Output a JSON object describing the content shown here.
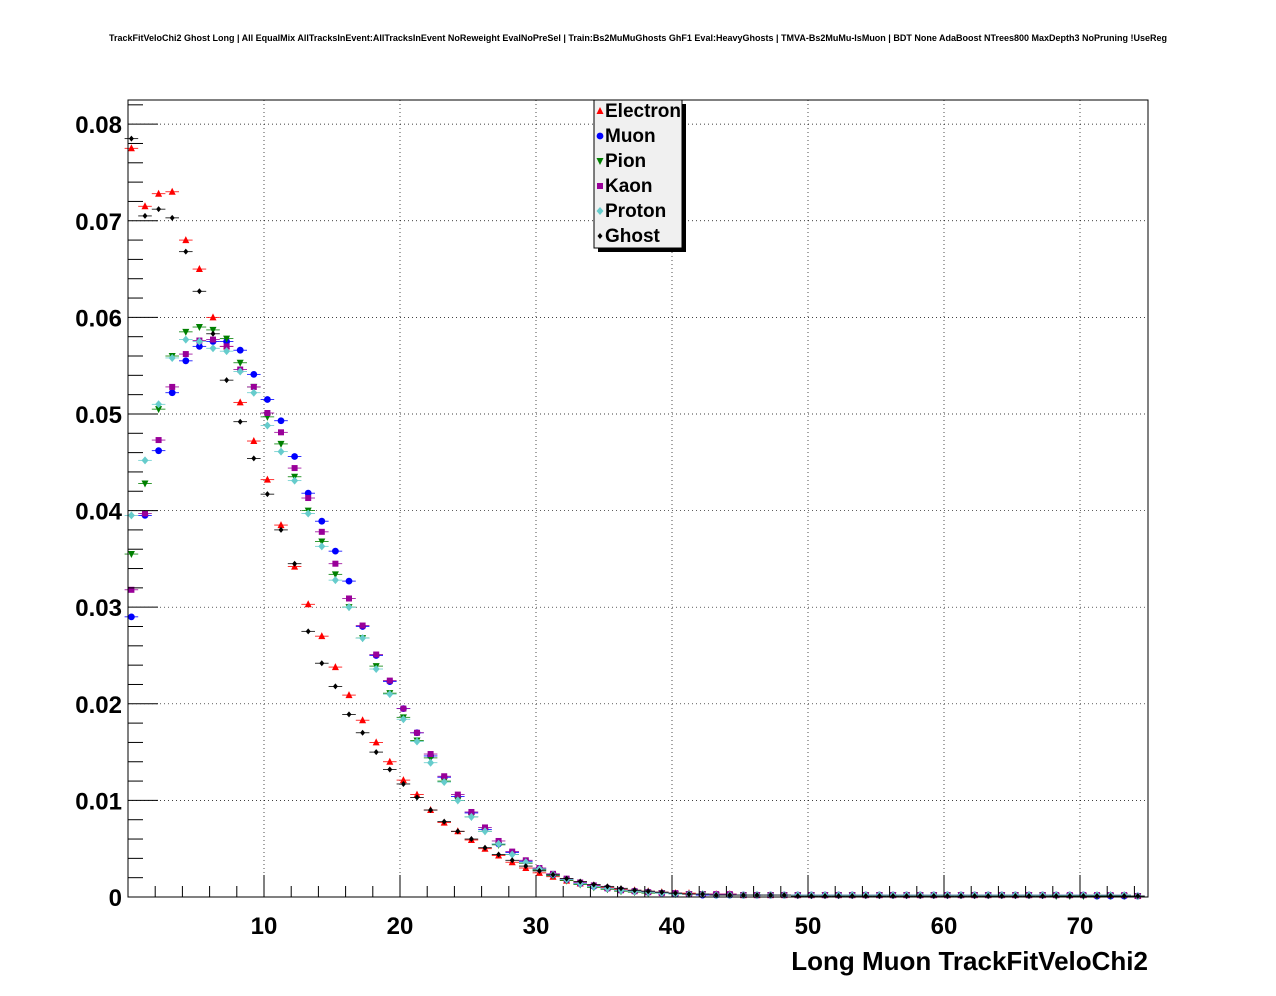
{
  "title": "TrackFitVeloChi2 Ghost Long | All EqualMix AllTracksInEvent:AllTracksInEvent NoReweight EvalNoPreSel | Train:Bs2MuMuGhosts GhF1 Eval:HeavyGhosts | TMVA-Bs2MuMu-IsMuon | BDT None AdaBoost NTrees800 MaxDepth3 NoPruning !UseReg",
  "chart_data": {
    "type": "scatter",
    "title": "TrackFitVeloChi2 Ghost Long | All EqualMix AllTracksInEvent:AllTracksInEvent NoReweight EvalNoPreSel | Train:Bs2MuMuGhosts GhF1 Eval:HeavyGhosts | TMVA-Bs2MuMu-IsMuon | BDT None AdaBoost NTrees800 MaxDepth3 NoPruning !UseReg",
    "xlabel": "Long Muon TrackFitVeloChi2",
    "ylabel": "",
    "xlim": [
      0,
      75
    ],
    "ylim": [
      0,
      0.0825
    ],
    "grid": true,
    "legend_position": "top-center",
    "x_ticks": [
      "10",
      "20",
      "30",
      "40",
      "50",
      "60",
      "70"
    ],
    "y_ticks": [
      "0",
      "0.01",
      "0.02",
      "0.03",
      "0.04",
      "0.05",
      "0.06",
      "0.07",
      "0.08"
    ],
    "x": [
      0.25,
      1.25,
      2.25,
      3.25,
      4.25,
      5.25,
      6.25,
      7.25,
      8.25,
      9.25,
      10.25,
      11.25,
      12.25,
      13.25,
      14.25,
      15.25,
      16.25,
      17.25,
      18.25,
      19.25,
      20.25,
      21.25,
      22.25,
      23.25,
      24.25,
      25.25,
      26.25,
      27.25,
      28.25,
      29.25,
      30.25,
      31.25,
      32.25,
      33.25,
      34.25,
      35.25,
      36.25,
      37.25,
      38.25,
      39.25,
      40.25,
      41.25,
      42.25,
      43.25,
      44.25,
      45.25,
      46.25,
      47.25,
      48.25,
      49.25,
      50.25,
      51.25,
      52.25,
      53.25,
      54.25,
      55.25,
      56.25,
      57.25,
      58.25,
      59.25,
      60.25,
      61.25,
      62.25,
      63.25,
      64.25,
      65.25,
      66.25,
      67.25,
      68.25,
      69.25,
      70.25,
      71.25,
      72.25,
      73.25,
      74.25
    ],
    "series": [
      {
        "name": "Electron",
        "color": "#ff0000",
        "marker": "triangle-up",
        "values": [
          0.0775,
          0.0715,
          0.0728,
          0.073,
          0.068,
          0.065,
          0.06,
          0.057,
          0.0512,
          0.0472,
          0.0432,
          0.0385,
          0.0342,
          0.0303,
          0.027,
          0.0238,
          0.0209,
          0.0183,
          0.016,
          0.014,
          0.0121,
          0.0106,
          0.009,
          0.0077,
          0.0068,
          0.0059,
          0.005,
          0.0043,
          0.0036,
          0.003,
          0.0025,
          0.0021,
          0.0017,
          0.0014,
          0.0012,
          0.001,
          0.0008,
          0.0007,
          0.0006,
          0.0005,
          0.0004,
          0.0004,
          0.0003,
          0.0003,
          0.0003,
          0.0002,
          0.0002,
          0.0002,
          0.0002,
          0.0002,
          0.0002,
          0.0002,
          0.0002,
          0.0002,
          0.0002,
          0.0002,
          0.0002,
          0.0002,
          0.0002,
          0.0002,
          0.0002,
          0.0002,
          0.0002,
          0.0002,
          0.0002,
          0.0002,
          0.0002,
          0.0002,
          0.0002,
          0.0002,
          0.0002,
          0.0002,
          0.0002,
          0.0002,
          0.0001
        ]
      },
      {
        "name": "Muon",
        "color": "#0000ff",
        "marker": "circle",
        "values": [
          0.029,
          0.0395,
          0.0462,
          0.0522,
          0.0555,
          0.057,
          0.0575,
          0.0575,
          0.0566,
          0.0541,
          0.0515,
          0.0493,
          0.0456,
          0.0418,
          0.0389,
          0.0358,
          0.0327,
          0.028,
          0.025,
          0.0223,
          0.0195,
          0.017,
          0.0146,
          0.0124,
          0.0104,
          0.0087,
          0.007,
          0.0055,
          0.0046,
          0.0037,
          0.0029,
          0.0023,
          0.0018,
          0.0014,
          0.0011,
          0.0009,
          0.0007,
          0.0006,
          0.0005,
          0.0004,
          0.0003,
          0.0003,
          0.0002,
          0.0002,
          0.0002,
          0.0002,
          0.0002,
          0.0002,
          0.0002,
          0.0002,
          0.0002,
          0.0002,
          0.0002,
          0.0002,
          0.0002,
          0.0002,
          0.0002,
          0.0002,
          0.0002,
          0.0002,
          0.0002,
          0.0002,
          0.0002,
          0.0002,
          0.0002,
          0.0002,
          0.0002,
          0.0002,
          0.0002,
          0.0002,
          0.0002,
          0.0001,
          0.0001,
          0.0001,
          0.0001
        ]
      },
      {
        "name": "Pion",
        "color": "#008000",
        "marker": "triangle-down",
        "values": [
          0.0355,
          0.0428,
          0.0505,
          0.056,
          0.0585,
          0.059,
          0.0587,
          0.0578,
          0.0553,
          0.0528,
          0.0497,
          0.0469,
          0.0435,
          0.04,
          0.0368,
          0.0334,
          0.03,
          0.0268,
          0.0239,
          0.0211,
          0.0186,
          0.0162,
          0.0144,
          0.012,
          0.01,
          0.0083,
          0.0068,
          0.0054,
          0.0044,
          0.0035,
          0.0028,
          0.0022,
          0.0017,
          0.0013,
          0.001,
          0.0008,
          0.0006,
          0.0005,
          0.0004,
          0.0004,
          0.0003,
          0.0003,
          0.0003,
          0.0002,
          0.0002,
          0.0002,
          0.0002,
          0.0002,
          0.0002,
          0.0002,
          0.0002,
          0.0002,
          0.0002,
          0.0002,
          0.0002,
          0.0002,
          0.0002,
          0.0002,
          0.0002,
          0.0002,
          0.0002,
          0.0002,
          0.0002,
          0.0002,
          0.0002,
          0.0002,
          0.0002,
          0.0002,
          0.0001,
          0.0001,
          0.0001,
          0.0001,
          0.0001,
          0.0001,
          0.0001
        ]
      },
      {
        "name": "Kaon",
        "color": "#990099",
        "marker": "square",
        "values": [
          0.0318,
          0.0397,
          0.0473,
          0.0528,
          0.0562,
          0.0576,
          0.0577,
          0.057,
          0.0546,
          0.0528,
          0.0501,
          0.0481,
          0.0444,
          0.0413,
          0.0378,
          0.0345,
          0.0309,
          0.0281,
          0.0251,
          0.0224,
          0.0195,
          0.017,
          0.0148,
          0.0125,
          0.0106,
          0.0088,
          0.0072,
          0.0058,
          0.0047,
          0.0038,
          0.003,
          0.0024,
          0.0019,
          0.0015,
          0.0012,
          0.0009,
          0.0007,
          0.0006,
          0.0005,
          0.0004,
          0.0004,
          0.0003,
          0.0003,
          0.0003,
          0.0003,
          0.0002,
          0.0002,
          0.0002,
          0.0002,
          0.0002,
          0.0002,
          0.0002,
          0.0002,
          0.0002,
          0.0002,
          0.0002,
          0.0002,
          0.0002,
          0.0002,
          0.0002,
          0.0002,
          0.0002,
          0.0002,
          0.0002,
          0.0002,
          0.0002,
          0.0002,
          0.0002,
          0.0002,
          0.0002,
          0.0002,
          0.0002,
          0.0002,
          0.0002,
          0.0001
        ]
      },
      {
        "name": "Proton",
        "color": "#66cccc",
        "marker": "diamond",
        "values": [
          0.0395,
          0.0452,
          0.051,
          0.0558,
          0.0577,
          0.0575,
          0.0568,
          0.0565,
          0.0544,
          0.0522,
          0.0488,
          0.0461,
          0.0431,
          0.0397,
          0.0363,
          0.0328,
          0.03,
          0.0268,
          0.0236,
          0.021,
          0.0184,
          0.0161,
          0.0139,
          0.0119,
          0.01,
          0.0083,
          0.0068,
          0.0055,
          0.0044,
          0.0036,
          0.0029,
          0.0023,
          0.0018,
          0.0014,
          0.0011,
          0.0009,
          0.0007,
          0.0006,
          0.0005,
          0.0004,
          0.0003,
          0.0003,
          0.0003,
          0.0002,
          0.0002,
          0.0002,
          0.0002,
          0.0002,
          0.0002,
          0.0002,
          0.0002,
          0.0002,
          0.0002,
          0.0002,
          0.0002,
          0.0002,
          0.0002,
          0.0002,
          0.0002,
          0.0002,
          0.0002,
          0.0002,
          0.0002,
          0.0002,
          0.0002,
          0.0002,
          0.0002,
          0.0002,
          0.0002,
          0.0002,
          0.0002,
          0.0002,
          0.0002,
          0.0002,
          0.0001
        ]
      },
      {
        "name": "Ghost",
        "color": "#000000",
        "marker": "diamond-small",
        "values": [
          0.0785,
          0.0705,
          0.0712,
          0.0703,
          0.0668,
          0.0627,
          0.0583,
          0.0535,
          0.0492,
          0.0454,
          0.0417,
          0.038,
          0.0345,
          0.0275,
          0.0242,
          0.0218,
          0.0189,
          0.017,
          0.015,
          0.0132,
          0.0117,
          0.0103,
          0.009,
          0.0078,
          0.0068,
          0.006,
          0.0051,
          0.0044,
          0.0038,
          0.0032,
          0.0027,
          0.0023,
          0.0019,
          0.0016,
          0.0013,
          0.0011,
          0.0009,
          0.0007,
          0.0006,
          0.0005,
          0.0004,
          0.0003,
          0.0003,
          0.0002,
          0.0002,
          0.0002,
          0.0002,
          0.0002,
          0.0002,
          0.0001,
          0.0001,
          0.0001,
          0.0001,
          0.0001,
          0.0001,
          0.0001,
          0.0001,
          0.0001,
          0.0001,
          0.0001,
          0.0001,
          0.0001,
          0.0001,
          0.0001,
          0.0001,
          0.0001,
          0.0001,
          0.0001,
          0.0001,
          0.0001,
          0.0001,
          0.0001,
          0.0001,
          0.0001,
          0.0001
        ]
      }
    ]
  }
}
